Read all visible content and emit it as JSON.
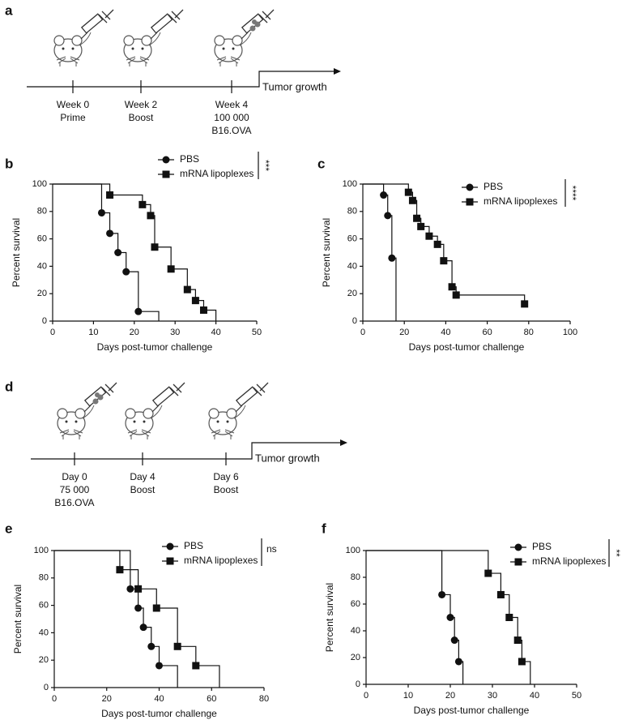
{
  "timelines": [
    {
      "panel": "a",
      "events": [
        [
          "Week 0",
          "Prime"
        ],
        [
          "Week 2",
          "Boost"
        ],
        [
          "Week 4",
          "100 000",
          "B16.OVA"
        ]
      ],
      "end_label": "Tumor growth"
    },
    {
      "panel": "d",
      "events": [
        [
          "Day 0",
          "75 000",
          "B16.OVA"
        ],
        [
          "Day 4",
          "Boost"
        ],
        [
          "Day 6",
          "Boost"
        ]
      ],
      "end_label": "Tumor growth"
    }
  ],
  "chart_data": [
    {
      "type": "survival",
      "panel": "b",
      "xlabel": "Days post-tumor challenge",
      "ylabel": "Percent survival",
      "significance": "***",
      "xlim": [
        0,
        50
      ],
      "xticks": [
        0,
        10,
        20,
        30,
        40,
        50
      ],
      "ylim": [
        0,
        100
      ],
      "yticks": [
        0,
        20,
        40,
        60,
        80,
        100
      ],
      "series": [
        {
          "name": "PBS",
          "color": "#111111",
          "marker": "circle",
          "x": [
            0,
            12,
            14,
            16,
            18,
            21,
            26
          ],
          "values": [
            100,
            79,
            64,
            50,
            36,
            7,
            0
          ],
          "marker_x": [
            12,
            14,
            16,
            18,
            21
          ],
          "marker_values": [
            79,
            64,
            50,
            36,
            7
          ]
        },
        {
          "name": "mRNA lipoplexes",
          "color": "#111111",
          "marker": "square",
          "x": [
            0,
            14,
            22,
            24,
            25,
            29,
            33,
            35,
            37,
            40
          ],
          "values": [
            100,
            92,
            85,
            77,
            54,
            38,
            23,
            15,
            8,
            0
          ],
          "marker_x": [
            14,
            22,
            24,
            25,
            29,
            33,
            35,
            37
          ],
          "marker_values": [
            92,
            85,
            77,
            54,
            38,
            23,
            15,
            8
          ]
        }
      ]
    },
    {
      "type": "survival",
      "panel": "c",
      "xlabel": "Days post-tumor challenge",
      "ylabel": "Percent survival",
      "significance": "****",
      "xlim": [
        0,
        100
      ],
      "xticks": [
        0,
        20,
        40,
        60,
        80,
        100
      ],
      "ylim": [
        0,
        100
      ],
      "yticks": [
        0,
        20,
        40,
        60,
        80,
        100
      ],
      "series": [
        {
          "name": "PBS",
          "color": "#111111",
          "marker": "circle",
          "x": [
            0,
            10,
            12,
            14,
            16
          ],
          "values": [
            100,
            92,
            77,
            46,
            0
          ],
          "marker_x": [
            10,
            12,
            14
          ],
          "marker_values": [
            92,
            77,
            46
          ]
        },
        {
          "name": "mRNA lipoplexes",
          "color": "#111111",
          "marker": "square",
          "x": [
            0,
            22,
            24,
            26,
            28,
            32,
            36,
            39,
            43,
            45,
            78
          ],
          "values": [
            100,
            94,
            88,
            75,
            69,
            62,
            56,
            44,
            25,
            19,
            12.5
          ],
          "marker_x": [
            22,
            24,
            26,
            28,
            32,
            36,
            39,
            43,
            45,
            78
          ],
          "marker_values": [
            94,
            88,
            75,
            69,
            62,
            56,
            44,
            25,
            19,
            12.5
          ]
        }
      ]
    },
    {
      "type": "survival",
      "panel": "e",
      "xlabel": "Days post-tumor challenge",
      "ylabel": "Percent survival",
      "significance": "ns",
      "xlim": [
        0,
        80
      ],
      "xticks": [
        0,
        20,
        40,
        60,
        80
      ],
      "ylim": [
        0,
        100
      ],
      "yticks": [
        0,
        20,
        40,
        60,
        80,
        100
      ],
      "series": [
        {
          "name": "PBS",
          "color": "#111111",
          "marker": "circle",
          "x": [
            0,
            29,
            32,
            34,
            37,
            40,
            47
          ],
          "values": [
            100,
            72,
            58,
            44,
            30,
            16,
            0
          ],
          "marker_x": [
            29,
            32,
            34,
            37,
            40
          ],
          "marker_values": [
            72,
            58,
            44,
            30,
            16
          ]
        },
        {
          "name": "mRNA lipoplexes",
          "color": "#111111",
          "marker": "square",
          "x": [
            0,
            25,
            32,
            39,
            47,
            54,
            63
          ],
          "values": [
            100,
            86,
            72,
            58,
            30,
            16,
            0
          ],
          "marker_x": [
            25,
            32,
            39,
            47,
            54
          ],
          "marker_values": [
            86,
            72,
            58,
            30,
            16
          ]
        }
      ]
    },
    {
      "type": "survival",
      "panel": "f",
      "xlabel": "Days post-tumor challenge",
      "ylabel": "Percent survival",
      "significance": "**",
      "xlim": [
        0,
        50
      ],
      "xticks": [
        0,
        10,
        20,
        30,
        40,
        50
      ],
      "ylim": [
        0,
        100
      ],
      "yticks": [
        0,
        20,
        40,
        60,
        80,
        100
      ],
      "series": [
        {
          "name": "PBS",
          "color": "#111111",
          "marker": "circle",
          "x": [
            0,
            18,
            20,
            21,
            22,
            23
          ],
          "values": [
            100,
            67,
            50,
            33,
            17,
            0
          ],
          "marker_x": [
            18,
            20,
            21,
            22
          ],
          "marker_values": [
            67,
            50,
            33,
            17
          ]
        },
        {
          "name": "mRNA lipoplexes",
          "color": "#111111",
          "marker": "square",
          "x": [
            0,
            29,
            32,
            34,
            36,
            37,
            39
          ],
          "values": [
            100,
            83,
            67,
            50,
            33,
            17,
            0
          ],
          "marker_x": [
            29,
            32,
            34,
            36,
            37
          ],
          "marker_values": [
            83,
            67,
            50,
            33,
            17
          ]
        }
      ]
    }
  ]
}
